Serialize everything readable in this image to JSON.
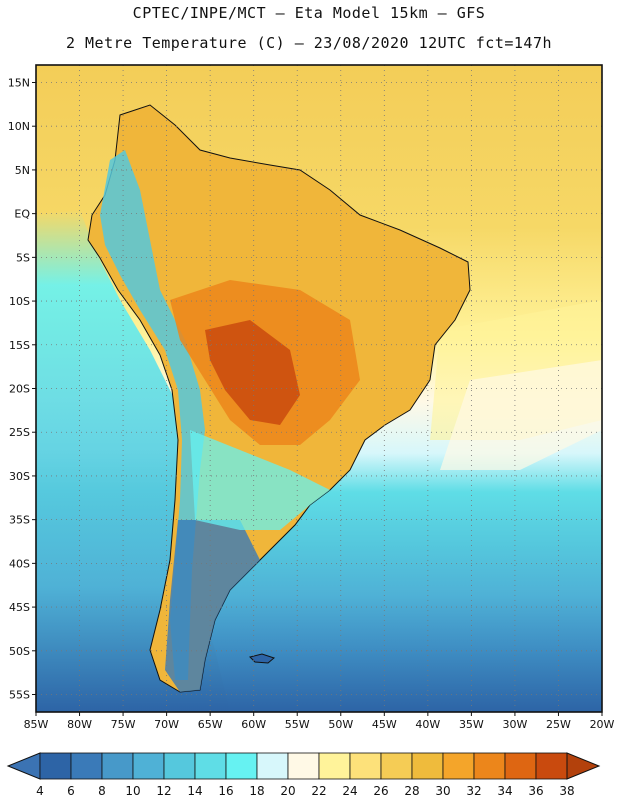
{
  "title": {
    "line1": "CPTEC/INPE/MCT –  Eta Model 15km – GFS",
    "line2": "2 Metre Temperature (C) – 23/08/2020 12UTC fct=147h"
  },
  "lat_labels": [
    "15N",
    "10N",
    "5N",
    "EQ",
    "5S",
    "10S",
    "15S",
    "20S",
    "25S",
    "30S",
    "35S",
    "40S",
    "45S",
    "50S",
    "55S"
  ],
  "lon_labels": [
    "85W",
    "80W",
    "75W",
    "70W",
    "65W",
    "60W",
    "55W",
    "50W",
    "45W",
    "40W",
    "35W",
    "30W",
    "25W",
    "20W"
  ],
  "colorbar": {
    "values": [
      "4",
      "6",
      "8",
      "10",
      "12",
      "14",
      "16",
      "18",
      "20",
      "22",
      "24",
      "26",
      "28",
      "30",
      "32",
      "34",
      "36",
      "38"
    ],
    "colors": [
      "#2d64a6",
      "#3a7ab8",
      "#4799c9",
      "#4fb1d6",
      "#55c8dd",
      "#5fdde6",
      "#66f2f2",
      "#d7f7fb",
      "#fff9e6",
      "#fff39a",
      "#fde17a",
      "#f5cc55",
      "#efbb3c",
      "#f4a52a",
      "#ec861b",
      "#de6612",
      "#c94a0e"
    ],
    "left_cap_color": "#3b73b3",
    "right_cap_color": "#b3410c"
  },
  "chart_data": {
    "type": "heatmap",
    "title": "2 Metre Temperature (C)",
    "model": "CPTEC/INPE/MCT Eta Model 15km - GFS",
    "date": "23/08/2020 12UTC",
    "forecast": "fct=147h",
    "units": "C",
    "lon_range": [
      -85,
      -20
    ],
    "lat_range": [
      -57,
      17
    ],
    "levels": [
      4,
      6,
      8,
      10,
      12,
      14,
      16,
      18,
      20,
      22,
      24,
      26,
      28,
      30,
      32,
      34,
      36,
      38
    ]
  }
}
